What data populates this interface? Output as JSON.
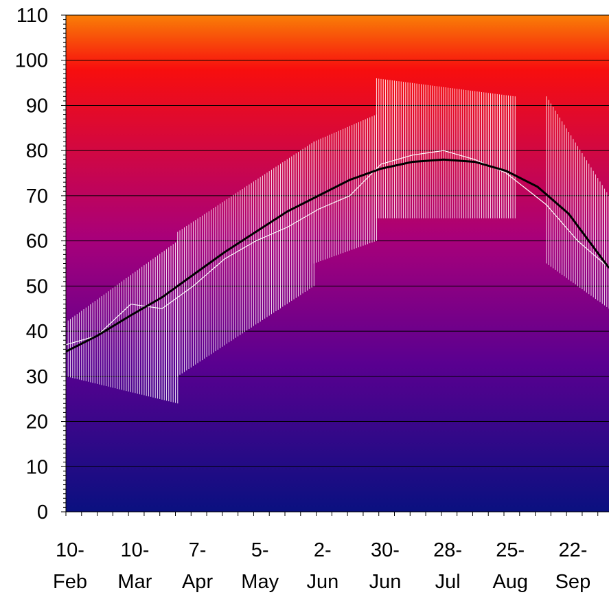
{
  "chart_data": {
    "type": "line",
    "title": "",
    "xlabel": "",
    "ylabel": "",
    "ylim": [
      0,
      110
    ],
    "yticks": [
      0,
      10,
      20,
      30,
      40,
      50,
      60,
      70,
      80,
      90,
      100,
      110
    ],
    "xlim": [
      "2000-02-10",
      "2000-10-10"
    ],
    "xticks": [
      {
        "date": "2000-02-10",
        "line1": "10-",
        "line2": "Feb"
      },
      {
        "date": "2000-03-10",
        "line1": "10-",
        "line2": "Mar"
      },
      {
        "date": "2000-04-07",
        "line1": "7-",
        "line2": "Apr"
      },
      {
        "date": "2000-05-05",
        "line1": "5-",
        "line2": "May"
      },
      {
        "date": "2000-06-02",
        "line1": "2-",
        "line2": "Jun"
      },
      {
        "date": "2000-06-30",
        "line1": "30-",
        "line2": "Jun"
      },
      {
        "date": "2000-07-28",
        "line1": "28-",
        "line2": "Jul"
      },
      {
        "date": "2000-08-25",
        "line1": "25-",
        "line2": "Aug"
      },
      {
        "date": "2000-09-22",
        "line1": "22-",
        "line2": "Sep"
      }
    ],
    "grid": "horizontal",
    "background_gradient": [
      "#f97f07",
      "#f70e0e",
      "#a8007a",
      "#5a0090",
      "#0a1080"
    ],
    "series": [
      {
        "kind": "high-low-range",
        "color": "#ffffff",
        "data": [
          {
            "start": "2000-02-10",
            "end": "2000-03-31",
            "low_from": 30,
            "low_to": 24,
            "high_from": 42,
            "high_to": 60
          },
          {
            "start": "2000-03-31",
            "end": "2000-05-31",
            "low_from": 30,
            "low_to": 50,
            "high_from": 62,
            "high_to": 82
          },
          {
            "start": "2000-05-31",
            "end": "2000-06-28",
            "low_from": 55,
            "low_to": 60,
            "high_from": 82,
            "high_to": 88
          },
          {
            "start": "2000-06-28",
            "end": "2000-08-29",
            "low_from": 65,
            "low_to": 65,
            "high_from": 96,
            "high_to": 92
          },
          {
            "start": "2000-09-12",
            "end": "2000-10-10",
            "low_from": 55,
            "low_to": 45,
            "high_from": 92,
            "high_to": 70
          }
        ]
      },
      {
        "kind": "line",
        "color": "#ffffff",
        "data": [
          {
            "x": "2000-02-10",
            "y": 37
          },
          {
            "x": "2000-02-24",
            "y": 39
          },
          {
            "x": "2000-03-10",
            "y": 46
          },
          {
            "x": "2000-03-24",
            "y": 45
          },
          {
            "x": "2000-04-07",
            "y": 50
          },
          {
            "x": "2000-04-21",
            "y": 56
          },
          {
            "x": "2000-05-05",
            "y": 60
          },
          {
            "x": "2000-05-19",
            "y": 63
          },
          {
            "x": "2000-06-02",
            "y": 67
          },
          {
            "x": "2000-06-16",
            "y": 70
          },
          {
            "x": "2000-06-30",
            "y": 77
          },
          {
            "x": "2000-07-14",
            "y": 79
          },
          {
            "x": "2000-07-28",
            "y": 80
          },
          {
            "x": "2000-08-11",
            "y": 78
          },
          {
            "x": "2000-08-25",
            "y": 75
          },
          {
            "x": "2000-09-12",
            "y": 68
          },
          {
            "x": "2000-09-26",
            "y": 60
          },
          {
            "x": "2000-10-10",
            "y": 54
          }
        ]
      },
      {
        "kind": "line",
        "color": "#000000",
        "data": [
          {
            "x": "2000-02-10",
            "y": 35.5
          },
          {
            "x": "2000-02-24",
            "y": 39
          },
          {
            "x": "2000-03-10",
            "y": 43.5
          },
          {
            "x": "2000-03-24",
            "y": 47.5
          },
          {
            "x": "2000-04-07",
            "y": 52.5
          },
          {
            "x": "2000-04-21",
            "y": 57.5
          },
          {
            "x": "2000-05-05",
            "y": 62
          },
          {
            "x": "2000-05-19",
            "y": 66.5
          },
          {
            "x": "2000-06-02",
            "y": 70
          },
          {
            "x": "2000-06-16",
            "y": 73.5
          },
          {
            "x": "2000-06-30",
            "y": 76
          },
          {
            "x": "2000-07-14",
            "y": 77.5
          },
          {
            "x": "2000-07-28",
            "y": 78
          },
          {
            "x": "2000-08-11",
            "y": 77.5
          },
          {
            "x": "2000-08-25",
            "y": 75.5
          },
          {
            "x": "2000-09-08",
            "y": 72
          },
          {
            "x": "2000-09-22",
            "y": 66
          },
          {
            "x": "2000-10-10",
            "y": 54
          }
        ]
      }
    ]
  }
}
